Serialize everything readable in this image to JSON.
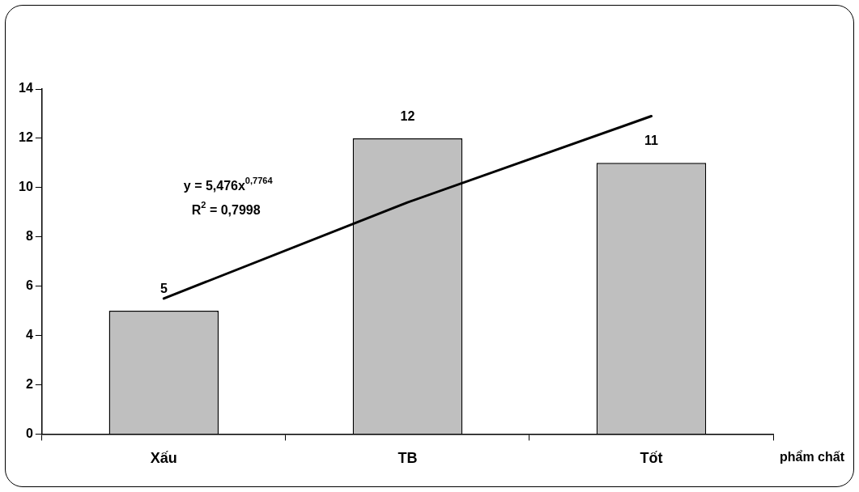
{
  "chart_data": {
    "type": "bar",
    "xlabel": "phẩm chất",
    "categories": [
      "Xấu",
      "TB",
      "Tốt"
    ],
    "series": [
      {
        "color": "#bfbfbf",
        "values": [
          5,
          12,
          11
        ],
        "value_labels": [
          "5",
          "12",
          "11"
        ]
      },
      {
        "type": "line",
        "color": "#000000",
        "x": [
          "Xấu",
          "TB",
          "Tốt"
        ],
        "values": [
          5.5,
          9.4,
          12.9
        ]
      }
    ],
    "ylim": [
      0,
      14
    ],
    "yticks": [
      0,
      2,
      4,
      6,
      8,
      10,
      12,
      14
    ],
    "grid": false,
    "legend": false,
    "marker": "none",
    "annotations": [
      "y = 5,476x$^{0,7764}$",
      "R$^{2}$ = 0,7998"
    ]
  }
}
